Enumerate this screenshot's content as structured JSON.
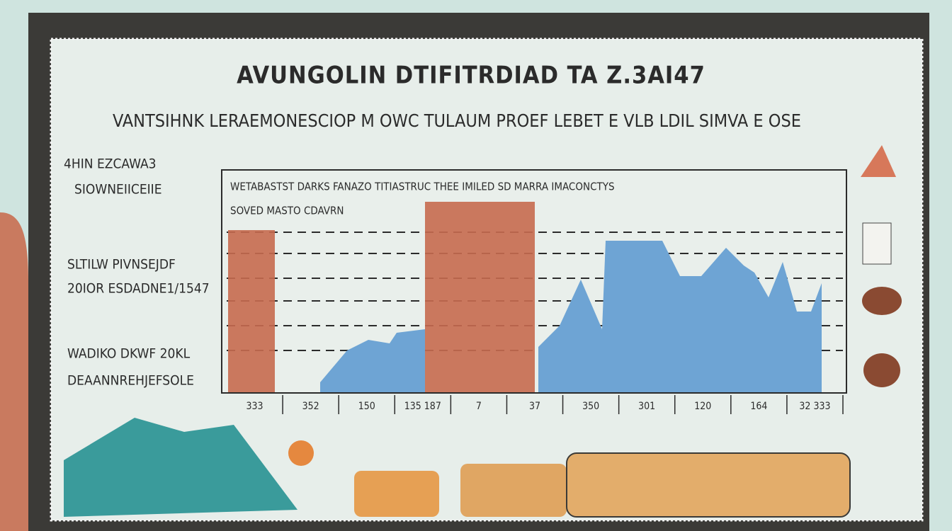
{
  "header": {
    "title": "AVUNGOLIN DTIFITRDIAD TA Z.3AI47",
    "subtitle": "VANTSIHNK LERAEMONESCIOP M OWC TULAUM PROEF LEBET E VLB LDIL SIMVA E OSE"
  },
  "side_labels": [
    "4HIN EZCAWA3",
    "SIOWNEIICEIIE",
    "SLTILW PIVNSEJDF",
    "20IOR ESDADNE1/1547",
    "WADIKO DKWF 20KL",
    "DEAANNREHJEFSOLE"
  ],
  "chart": {
    "caption": [
      "WETABASTST DARKS FANAZO TITIASTRUC THEE IMILED SD MARRA IMACONCTYS",
      "SOVED MASTO CDAVRN"
    ],
    "x_labels": [
      "333",
      "352",
      "150",
      "135 187",
      "7",
      "37",
      "350",
      "301",
      "120",
      "164",
      "32 333"
    ]
  }
}
